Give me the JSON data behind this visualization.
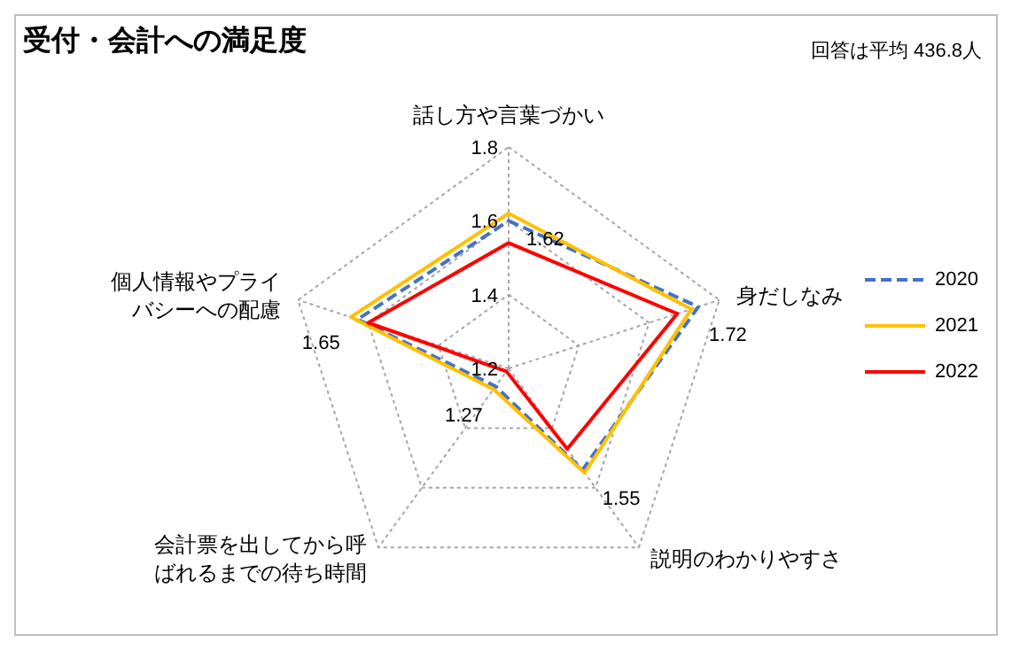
{
  "chart_data": {
    "type": "radar",
    "title": "受付・会計への満足度",
    "annotations": [
      "回答は平均 436.8人"
    ],
    "categories": [
      "話し方や言葉づかい",
      "身だしなみ",
      "説明のわかりやすさ",
      "会計票を出してから呼ばれるまでの待ち時間",
      "個人情報やプライバシーへの配慮"
    ],
    "series": [
      {
        "name": "2020",
        "color": "#4472c4",
        "line_style": "dashed",
        "values": [
          1.6,
          1.74,
          1.54,
          1.26,
          1.63
        ]
      },
      {
        "name": "2021",
        "color": "#ffc000",
        "line_style": "solid",
        "values": [
          1.62,
          1.72,
          1.55,
          1.27,
          1.65
        ],
        "value_labels": [
          "1.62",
          "1.72",
          "1.55",
          "1.27",
          "1.65"
        ]
      },
      {
        "name": "2022",
        "color": "#ff0000",
        "line_style": "solid",
        "values": [
          1.54,
          1.68,
          1.47,
          1.21,
          1.6
        ]
      }
    ],
    "ylim": [
      1.2,
      1.8
    ],
    "yticks": [
      1.2,
      1.4,
      1.6,
      1.8
    ],
    "grid": true,
    "legend": "right",
    "marker": "none"
  }
}
